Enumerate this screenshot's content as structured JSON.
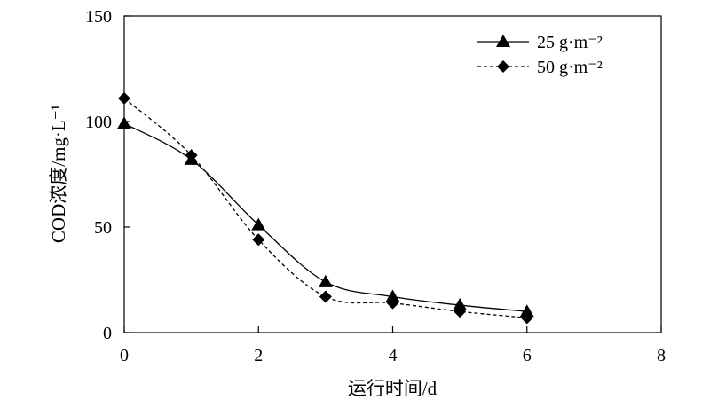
{
  "chart_data": {
    "type": "line",
    "xlabel": "运行时间/d",
    "ylabel": "COD浓度/mg·L⁻¹",
    "xlim": [
      0,
      8
    ],
    "ylim": [
      0,
      150
    ],
    "xticks": [
      "0",
      "2",
      "4",
      "6",
      "8"
    ],
    "yticks": [
      "0",
      "50",
      "100",
      "150"
    ],
    "grid": false,
    "legend_position": "top-right",
    "series": [
      {
        "name": "25 g·m⁻²",
        "marker": "triangle",
        "line_style": "solid",
        "x": [
          0,
          1,
          2,
          3,
          4,
          5,
          6
        ],
        "y": [
          99,
          82,
          51,
          24,
          17,
          13,
          10
        ]
      },
      {
        "name": "50 g·m⁻²",
        "marker": "diamond",
        "line_style": "dashed",
        "x": [
          0,
          1,
          2,
          3,
          4,
          5,
          6
        ],
        "y": [
          111,
          84,
          44,
          17,
          14,
          10,
          7
        ]
      }
    ]
  }
}
